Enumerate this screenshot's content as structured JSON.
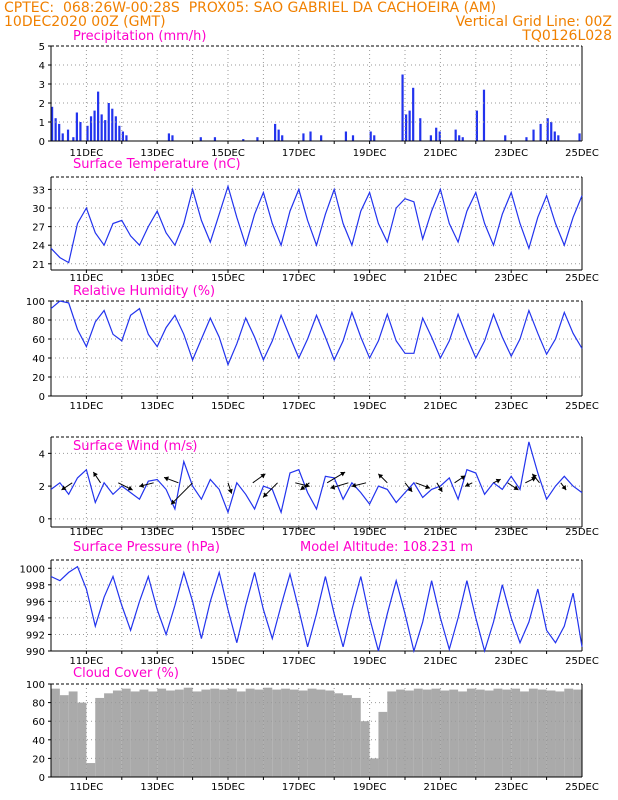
{
  "header": {
    "line1": "CPTEC:  068:26W-00:28S  PROX05: SAO GABRIEL DA CACHOEIRA (AM)",
    "line2_left": "10DEC2020 00Z (GMT)",
    "line2_right": "Vertical Grid Line: 00Z",
    "line3_right": "TQ0126L028"
  },
  "x_axis": {
    "start_day": 10,
    "end_day": 25,
    "tick_labels": [
      {
        "day": 11,
        "label": "11DEC"
      },
      {
        "day": 13,
        "label": "13DEC"
      },
      {
        "day": 15,
        "label": "15DEC"
      },
      {
        "day": 17,
        "label": "17DEC"
      },
      {
        "day": 19,
        "label": "19DEC"
      },
      {
        "day": 21,
        "label": "21DEC"
      },
      {
        "day": 23,
        "label": "23DEC"
      },
      {
        "day": 25,
        "label": "25DEC"
      }
    ]
  },
  "colors": {
    "line": "#2233ee",
    "title": "#ff00cc",
    "header": "#f08000",
    "cloud": "#aaaaaa",
    "grid": "#999999"
  },
  "chart_data": [
    {
      "type": "bar",
      "title": "Precipitation (mm/h)",
      "ylim": [
        0,
        5
      ],
      "yticks": [
        0,
        1,
        2,
        3,
        4,
        5
      ],
      "series": [
        {
          "x": [
            10.0,
            10.1,
            10.2,
            10.3,
            10.45,
            10.6,
            10.7,
            10.8,
            11.0,
            11.1,
            11.2,
            11.3,
            11.4,
            11.5,
            11.6,
            11.7,
            11.8,
            11.9,
            12.0,
            12.1,
            13.3,
            13.4,
            14.2,
            14.6,
            15.4,
            15.8,
            16.3,
            16.4,
            16.5,
            17.1,
            17.3,
            17.6,
            18.3,
            18.5,
            19.0,
            19.1,
            19.9,
            20.0,
            20.1,
            20.2,
            20.4,
            20.7,
            20.85,
            20.95,
            21.4,
            21.5,
            21.6,
            22.0,
            22.2,
            22.8,
            23.4,
            23.6,
            23.8,
            24.0,
            24.1,
            24.2,
            24.3,
            24.9
          ],
          "values": [
            1.8,
            1.2,
            0.9,
            0.4,
            0.6,
            0.2,
            1.5,
            1.0,
            0.8,
            1.3,
            1.6,
            2.6,
            1.4,
            1.1,
            2.0,
            1.7,
            1.3,
            0.8,
            0.5,
            0.3,
            0.4,
            0.3,
            0.2,
            0.2,
            0.1,
            0.2,
            0.9,
            0.6,
            0.3,
            0.4,
            0.5,
            0.3,
            0.5,
            0.3,
            0.5,
            0.3,
            3.5,
            1.4,
            1.6,
            2.8,
            1.2,
            0.3,
            0.7,
            0.5,
            0.6,
            0.3,
            0.2,
            1.6,
            2.7,
            0.3,
            0.2,
            0.6,
            0.9,
            1.2,
            1.0,
            0.5,
            0.3,
            0.4
          ]
        }
      ]
    },
    {
      "type": "line",
      "title": "Surface Temperature (nC)",
      "ylim": [
        20,
        35
      ],
      "yticks": [
        21,
        24,
        27,
        30,
        33
      ],
      "series": [
        {
          "x": [
            10.0,
            10.25,
            10.5,
            10.75,
            11.0,
            11.25,
            11.5,
            11.75,
            12.0,
            12.25,
            12.5,
            12.75,
            13.0,
            13.25,
            13.5,
            13.75,
            14.0,
            14.25,
            14.5,
            14.75,
            15.0,
            15.25,
            15.5,
            15.75,
            16.0,
            16.25,
            16.5,
            16.75,
            17.0,
            17.25,
            17.5,
            17.75,
            18.0,
            18.25,
            18.5,
            18.75,
            19.0,
            19.25,
            19.5,
            19.75,
            20.0,
            20.25,
            20.5,
            20.75,
            21.0,
            21.25,
            21.5,
            21.75,
            22.0,
            22.25,
            22.5,
            22.75,
            23.0,
            23.25,
            23.5,
            23.75,
            24.0,
            24.25,
            24.5,
            24.75,
            25.0
          ],
          "values": [
            23.5,
            22.0,
            21.2,
            27.5,
            30.0,
            26.0,
            24.0,
            27.5,
            28.0,
            25.5,
            24.0,
            27.0,
            29.5,
            26.0,
            24.0,
            27.5,
            33.0,
            28.0,
            24.5,
            29.0,
            33.5,
            28.5,
            24.0,
            29.0,
            32.5,
            27.5,
            24.0,
            29.5,
            33.0,
            28.0,
            24.0,
            29.0,
            33.0,
            27.5,
            24.0,
            29.5,
            32.5,
            27.5,
            24.5,
            30.0,
            31.5,
            31.0,
            25.0,
            29.5,
            33.0,
            27.5,
            24.5,
            29.5,
            32.5,
            27.5,
            24.0,
            29.0,
            32.5,
            27.5,
            23.5,
            28.5,
            32.0,
            27.5,
            24.0,
            28.5,
            32.0
          ]
        }
      ]
    },
    {
      "type": "line",
      "title": "Relative Humidity (%)",
      "ylim": [
        0,
        100
      ],
      "yticks": [
        0,
        20,
        40,
        60,
        80,
        100
      ],
      "series": [
        {
          "x": [
            10.0,
            10.25,
            10.5,
            10.75,
            11.0,
            11.25,
            11.5,
            11.75,
            12.0,
            12.25,
            12.5,
            12.75,
            13.0,
            13.25,
            13.5,
            13.75,
            14.0,
            14.25,
            14.5,
            14.75,
            15.0,
            15.25,
            15.5,
            15.75,
            16.0,
            16.25,
            16.5,
            16.75,
            17.0,
            17.25,
            17.5,
            17.75,
            18.0,
            18.25,
            18.5,
            18.75,
            19.0,
            19.25,
            19.5,
            19.75,
            20.0,
            20.25,
            20.5,
            20.75,
            21.0,
            21.25,
            21.5,
            21.75,
            22.0,
            22.25,
            22.5,
            22.75,
            23.0,
            23.25,
            23.5,
            23.75,
            24.0,
            24.25,
            24.5,
            24.75,
            25.0
          ],
          "values": [
            92,
            100,
            98,
            70,
            52,
            78,
            90,
            65,
            58,
            85,
            92,
            65,
            52,
            72,
            85,
            65,
            38,
            60,
            82,
            62,
            33,
            55,
            82,
            62,
            38,
            58,
            85,
            62,
            40,
            60,
            85,
            62,
            38,
            58,
            88,
            62,
            40,
            58,
            86,
            58,
            45,
            45,
            82,
            62,
            40,
            58,
            86,
            62,
            40,
            58,
            86,
            62,
            42,
            60,
            90,
            66,
            44,
            60,
            88,
            66,
            50
          ]
        }
      ]
    },
    {
      "type": "line",
      "title": "Surface Wind (m/s)",
      "ylim": [
        -0.5,
        5
      ],
      "yticks": [
        0,
        2,
        4
      ],
      "series": [
        {
          "x": [
            10.0,
            10.25,
            10.5,
            10.75,
            11.0,
            11.25,
            11.5,
            11.75,
            12.0,
            12.25,
            12.5,
            12.75,
            13.0,
            13.25,
            13.5,
            13.75,
            14.0,
            14.25,
            14.5,
            14.75,
            15.0,
            15.25,
            15.5,
            15.75,
            16.0,
            16.25,
            16.5,
            16.75,
            17.0,
            17.25,
            17.5,
            17.75,
            18.0,
            18.25,
            18.5,
            18.75,
            19.0,
            19.25,
            19.5,
            19.75,
            20.0,
            20.25,
            20.5,
            20.75,
            21.0,
            21.25,
            21.5,
            21.75,
            22.0,
            22.25,
            22.5,
            22.75,
            23.0,
            23.25,
            23.5,
            23.75,
            24.0,
            24.25,
            24.5,
            24.75,
            25.0
          ],
          "values": [
            1.8,
            2.2,
            1.5,
            2.5,
            3.0,
            1.0,
            2.2,
            1.5,
            2.0,
            1.6,
            1.2,
            2.3,
            2.4,
            1.8,
            0.6,
            3.5,
            2.0,
            1.2,
            2.4,
            1.8,
            0.4,
            2.2,
            1.5,
            0.6,
            2.0,
            1.8,
            0.4,
            2.8,
            3.0,
            1.6,
            0.6,
            2.6,
            2.5,
            1.2,
            2.2,
            1.6,
            0.9,
            2.0,
            1.8,
            1.0,
            1.6,
            2.2,
            1.3,
            1.8,
            2.0,
            2.5,
            1.2,
            3.0,
            2.8,
            1.5,
            2.2,
            1.8,
            2.6,
            1.8,
            4.7,
            2.8,
            1.2,
            2.0,
            2.6,
            2.0,
            1.6
          ]
        },
        {
          "name": "wind vectors",
          "x": [
            10.6,
            11.4,
            11.9,
            12.9,
            13.6,
            14.0,
            15.0,
            15.7,
            16.4,
            16.9,
            17.3,
            17.8,
            18.4,
            18.9,
            19.5,
            20.0,
            20.3,
            20.9,
            21.4,
            21.9,
            22.5,
            22.9,
            23.4,
            23.8,
            24.4
          ],
          "u": [
            -0.6,
            -0.4,
            0.8,
            -0.8,
            -0.8,
            -1.2,
            0.2,
            0.7,
            -0.8,
            0.8,
            -0.5,
            1.0,
            -1.0,
            -0.8,
            -0.5,
            0.4,
            0.8,
            0.3,
            0.6,
            -0.4,
            0.4,
            0.6,
            0.6,
            -0.4,
            0.3
          ],
          "v": [
            -0.4,
            0.6,
            -0.4,
            -0.2,
            0.3,
            -1.2,
            -0.6,
            0.5,
            -0.8,
            -0.2,
            -0.4,
            0.6,
            -0.3,
            -0.2,
            0.5,
            -0.5,
            -0.3,
            -0.5,
            0.4,
            -0.2,
            0.2,
            -0.4,
            0.3,
            0.5,
            -0.4
          ]
        }
      ]
    },
    {
      "type": "line",
      "title": "Surface Pressure (hPa)",
      "annotation": "Model Altitude: 108.231 m",
      "ylim": [
        990,
        1001
      ],
      "yticks": [
        990,
        992,
        994,
        996,
        998,
        1000
      ],
      "series": [
        {
          "x": [
            10.0,
            10.25,
            10.5,
            10.75,
            11.0,
            11.25,
            11.5,
            11.75,
            12.0,
            12.25,
            12.5,
            12.75,
            13.0,
            13.25,
            13.5,
            13.75,
            14.0,
            14.25,
            14.5,
            14.75,
            15.0,
            15.25,
            15.5,
            15.75,
            16.0,
            16.25,
            16.5,
            16.75,
            17.0,
            17.25,
            17.5,
            17.75,
            18.0,
            18.25,
            18.5,
            18.75,
            19.0,
            19.25,
            19.5,
            19.75,
            20.0,
            20.25,
            20.5,
            20.75,
            21.0,
            21.25,
            21.5,
            21.75,
            22.0,
            22.25,
            22.5,
            22.75,
            23.0,
            23.25,
            23.5,
            23.75,
            24.0,
            24.25,
            24.5,
            24.75,
            25.0
          ],
          "values": [
            999.0,
            998.5,
            999.5,
            1000.2,
            997.5,
            993.0,
            996.5,
            999.0,
            995.5,
            992.5,
            996.0,
            999.0,
            995.0,
            992.0,
            995.5,
            999.5,
            996.0,
            991.5,
            996.0,
            999.5,
            995.0,
            991.0,
            995.5,
            999.5,
            995.0,
            991.5,
            995.5,
            999.3,
            995.0,
            990.5,
            994.5,
            999.0,
            994.5,
            990.5,
            995.0,
            999.0,
            994.0,
            990.0,
            994.5,
            998.5,
            994.5,
            990.0,
            993.5,
            998.5,
            994.0,
            990.2,
            994.0,
            998.5,
            994.0,
            990.0,
            993.5,
            998.0,
            994.0,
            991.0,
            993.5,
            997.5,
            992.5,
            991.0,
            993.0,
            997.0,
            990.5
          ]
        }
      ]
    },
    {
      "type": "area",
      "title": "Cloud Cover (%)",
      "ylim": [
        0,
        100
      ],
      "yticks": [
        0,
        20,
        40,
        60,
        80,
        100
      ],
      "series": [
        {
          "x": [
            10.0,
            10.25,
            10.5,
            10.75,
            11.0,
            11.25,
            11.5,
            11.75,
            12.0,
            12.25,
            12.5,
            12.75,
            13.0,
            13.25,
            13.5,
            13.75,
            14.0,
            14.25,
            14.5,
            14.75,
            15.0,
            15.25,
            15.5,
            15.75,
            16.0,
            16.25,
            16.5,
            16.75,
            17.0,
            17.25,
            17.5,
            17.75,
            18.0,
            18.25,
            18.5,
            18.75,
            19.0,
            19.25,
            19.5,
            19.75,
            20.0,
            20.25,
            20.5,
            20.75,
            21.0,
            21.25,
            21.5,
            21.75,
            22.0,
            22.25,
            22.5,
            22.75,
            23.0,
            23.25,
            23.5,
            23.75,
            24.0,
            24.25,
            24.5,
            24.75,
            25.0
          ],
          "values": [
            95,
            88,
            92,
            80,
            15,
            85,
            90,
            93,
            95,
            92,
            94,
            92,
            95,
            93,
            94,
            96,
            92,
            94,
            95,
            94,
            95,
            92,
            95,
            94,
            96,
            94,
            95,
            94,
            93,
            95,
            94,
            93,
            90,
            88,
            85,
            60,
            20,
            70,
            92,
            94,
            93,
            95,
            94,
            95,
            93,
            94,
            92,
            95,
            94,
            93,
            95,
            94,
            95,
            92,
            95,
            94,
            93,
            92,
            95,
            94,
            93
          ]
        }
      ]
    }
  ]
}
